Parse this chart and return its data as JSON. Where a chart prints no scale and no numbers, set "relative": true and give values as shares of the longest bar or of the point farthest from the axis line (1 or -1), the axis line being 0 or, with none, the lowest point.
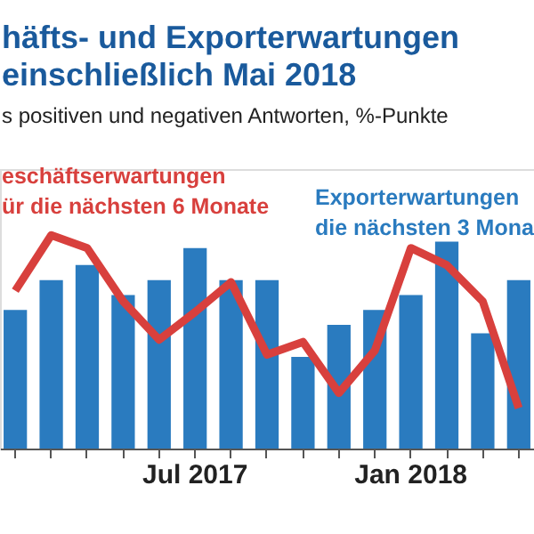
{
  "chart_data": {
    "type": "bar",
    "title": "häfts- und Exporterwartungen\neinschließlich Mai 2018",
    "subtitle": "s positiven und negativen Antworten, %-Punkte",
    "relative": true,
    "legend": false,
    "grid": false,
    "categories": [
      null,
      null,
      null,
      null,
      null,
      "Jul 2017",
      null,
      null,
      null,
      null,
      null,
      "Jan 2018",
      null,
      null,
      null
    ],
    "series": [
      {
        "name": "Exporterwartungen\ndie nächsten 3 Mona",
        "color": "#2a7bbf",
        "values": [
          0.65,
          0.79,
          0.86,
          0.72,
          0.79,
          0.94,
          0.79,
          0.79,
          0.43,
          0.58,
          0.65,
          0.72,
          0.97,
          0.54,
          0.79
        ]
      },
      {
        "name": "eschäftserwartungen\nür die nächsten 6 Monate",
        "type": "line",
        "color": "#d8403d",
        "values": [
          0.74,
          1.0,
          0.94,
          0.69,
          0.51,
          0.64,
          0.78,
          0.44,
          0.5,
          0.26,
          0.46,
          0.94,
          0.86,
          0.69,
          0.19
        ]
      }
    ]
  }
}
